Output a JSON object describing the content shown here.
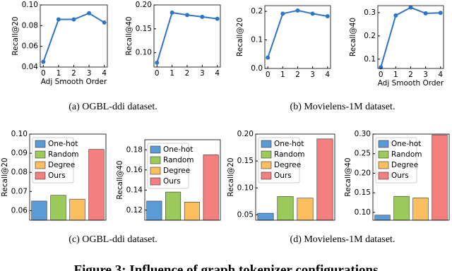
{
  "chart_data": [
    {
      "type": "line",
      "x": [
        0,
        1,
        2,
        3,
        4
      ],
      "values": [
        0.045,
        0.086,
        0.086,
        0.092,
        0.083
      ],
      "color": "#2e75c6",
      "xlim": [
        -0.2,
        4.2
      ],
      "xticks": [
        0,
        1,
        2,
        3,
        4
      ],
      "ylim": [
        0.04,
        0.1
      ],
      "yticks": [
        0.04,
        0.06,
        0.08,
        {
          "value": 0.1,
          "label": "0.10"
        }
      ],
      "xlabel": "Adj Smooth Order",
      "ylabel": "Recall@20"
    },
    {
      "type": "line",
      "x": [
        0,
        1,
        2,
        3,
        4
      ],
      "values": [
        0.079,
        0.184,
        0.179,
        0.175,
        0.171
      ],
      "color": "#2e75c6",
      "xlim": [
        -0.2,
        4.2
      ],
      "xticks": [
        0,
        1,
        2,
        3,
        4
      ],
      "ylim": [
        0.07,
        0.2
      ],
      "yticks": [
        {
          "value": 0.1,
          "label": "0.10"
        },
        0.15,
        {
          "value": 0.2,
          "label": "0.20"
        }
      ],
      "ylabel": "Recall@40"
    },
    {
      "type": "line",
      "x": [
        0,
        1,
        2,
        3,
        4
      ],
      "values": [
        0.038,
        0.192,
        0.203,
        0.192,
        0.183
      ],
      "color": "#2e75c6",
      "xlim": [
        -0.2,
        4.2
      ],
      "xticks": [
        0,
        1,
        2,
        3,
        4
      ],
      "ylim": [
        0,
        0.22
      ],
      "yticks": [
        {
          "value": 0,
          "label": "0.0"
        },
        0.1,
        0.2
      ],
      "ylabel": "Recall@20"
    },
    {
      "type": "line",
      "x": [
        0,
        1,
        2,
        3,
        4
      ],
      "values": [
        0.065,
        0.288,
        0.322,
        0.297,
        0.299
      ],
      "color": "#2e75c6",
      "xlim": [
        -0.2,
        4.2
      ],
      "xticks": [
        0,
        1,
        2,
        3,
        4
      ],
      "ylim": [
        0.06,
        0.33
      ],
      "yticks": [
        0.1,
        0.2,
        0.3
      ],
      "xlabel": "Adj Smooth Order",
      "ylabel": "Recall@40"
    },
    {
      "type": "bar",
      "ylim": [
        0.055,
        0.1
      ],
      "yticks": [
        0.06,
        0.07,
        0.08,
        0.09,
        {
          "value": 0.1,
          "label": "0.10"
        }
      ],
      "ylabel": "Recall@20",
      "legend": "upper left",
      "series": [
        {
          "name": "One-hot",
          "color": "#5b9bd5",
          "values": [
            0.065
          ]
        },
        {
          "name": "Random",
          "color": "#9bc95a",
          "values": [
            0.068
          ]
        },
        {
          "name": "Degree",
          "color": "#fbbf5f",
          "values": [
            0.066
          ]
        },
        {
          "name": "Ours",
          "color": "#f47f7f",
          "values": [
            0.092
          ]
        }
      ]
    },
    {
      "type": "bar",
      "ylim": [
        0.11,
        0.19
      ],
      "yticks": [
        0.12,
        0.14,
        0.16,
        0.18
      ],
      "ylabel": "Recall@40",
      "legend": "upper left",
      "series": [
        {
          "name": "One-hot",
          "color": "#5b9bd5",
          "values": [
            0.129
          ]
        },
        {
          "name": "Random",
          "color": "#9bc95a",
          "values": [
            0.138
          ]
        },
        {
          "name": "Degree",
          "color": "#fbbf5f",
          "values": [
            0.128
          ]
        },
        {
          "name": "Ours",
          "color": "#f47f7f",
          "values": [
            0.175
          ]
        }
      ]
    },
    {
      "type": "bar",
      "ylim": [
        0.04,
        0.2
      ],
      "yticks": [
        0.05,
        {
          "value": 0.1,
          "label": "0.10"
        },
        0.15,
        {
          "value": 0.2,
          "label": "0.20"
        }
      ],
      "ylabel": "Recall@20",
      "legend": "upper left",
      "series": [
        {
          "name": "One-hot",
          "color": "#5b9bd5",
          "values": [
            0.053
          ]
        },
        {
          "name": "Random",
          "color": "#9bc95a",
          "values": [
            0.084
          ]
        },
        {
          "name": "Degree",
          "color": "#fbbf5f",
          "values": [
            0.081
          ]
        },
        {
          "name": "Ours",
          "color": "#f47f7f",
          "values": [
            0.191
          ]
        }
      ]
    },
    {
      "type": "bar",
      "ylim": [
        0.08,
        0.3
      ],
      "yticks": [
        {
          "value": 0.1,
          "label": "0.10"
        },
        0.15,
        {
          "value": 0.2,
          "label": "0.20"
        },
        0.25,
        {
          "value": 0.3,
          "label": "0.30"
        }
      ],
      "ylabel": "Recall@40",
      "legend": "upper left",
      "series": [
        {
          "name": "One-hot",
          "color": "#5b9bd5",
          "values": [
            0.093
          ]
        },
        {
          "name": "Random",
          "color": "#9bc95a",
          "values": [
            0.141
          ]
        },
        {
          "name": "Degree",
          "color": "#fbbf5f",
          "values": [
            0.137
          ]
        },
        {
          "name": "Ours",
          "color": "#f47f7f",
          "values": [
            0.298
          ]
        }
      ]
    }
  ],
  "captions": [
    "(a)  OGBL-ddi dataset.",
    "(b)  Movielens-1M dataset.",
    "(c)  OGBL-ddi dataset.",
    "(d)  Movielens-1M dataset."
  ],
  "figure_caption": "Figure 3: Influence of graph tokenizer configurations"
}
